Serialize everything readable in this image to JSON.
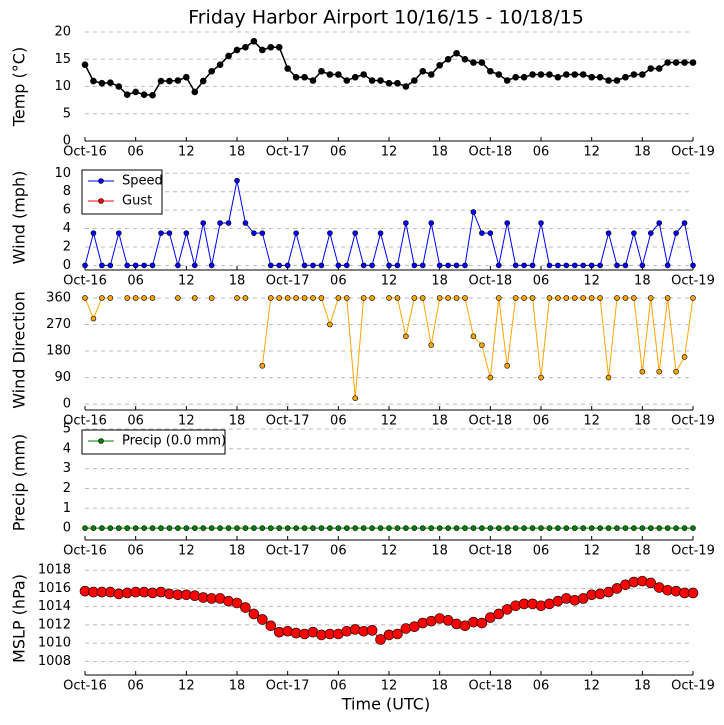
{
  "chart_data": [
    {
      "type": "line",
      "title": "Friday Harbor Airport 10/16/15 - 10/18/15",
      "ylabel": "Temp (°C)",
      "x": [
        0,
        1,
        2,
        3,
        4,
        5,
        6,
        7,
        8,
        9,
        10,
        11,
        12,
        13,
        14,
        15,
        16,
        17,
        18,
        19,
        20,
        21,
        22,
        23,
        24,
        25,
        26,
        27,
        28,
        29,
        30,
        31,
        32,
        33,
        34,
        35,
        36,
        37,
        38,
        39,
        40,
        41,
        42,
        43,
        44,
        45,
        46,
        47,
        48,
        49,
        50,
        51,
        52,
        53,
        54,
        55,
        56,
        57,
        58,
        59,
        60,
        61,
        62,
        63,
        64,
        65,
        66,
        67,
        68,
        69,
        70,
        71,
        72
      ],
      "series": [
        {
          "name": "Temp",
          "color": "#000000",
          "values": [
            14,
            11,
            10.6,
            10.7,
            10,
            8.5,
            9,
            8.5,
            8.4,
            11,
            11,
            11.1,
            11.7,
            9,
            11,
            12.8,
            14,
            15.6,
            16.7,
            17.2,
            18.3,
            16.7,
            17.2,
            17.2,
            13.3,
            11.7,
            11.7,
            11.1,
            12.8,
            12.2,
            12.2,
            11.1,
            11.7,
            12.2,
            11.1,
            11.1,
            10.6,
            10.6,
            10,
            11.1,
            12.8,
            12.2,
            13.9,
            15,
            16.1,
            15,
            14.4,
            14.4,
            12.8,
            12.2,
            11.1,
            11.7,
            11.7,
            12.2,
            12.2,
            12.2,
            11.7,
            12.2,
            12.2,
            12.2,
            11.7,
            11.7,
            11.1,
            11.1,
            11.7,
            12.2,
            12.2,
            13.3,
            13.3,
            14.4,
            14.4,
            14.4,
            14.4
          ]
        }
      ],
      "xlim": [
        0,
        72
      ],
      "xticks": [
        {
          "value": 0,
          "label": "Oct-16"
        },
        {
          "value": 6,
          "label": "06"
        },
        {
          "value": 12,
          "label": "12"
        },
        {
          "value": 18,
          "label": "18"
        },
        {
          "value": 24,
          "label": "Oct-17"
        },
        {
          "value": 30,
          "label": "06"
        },
        {
          "value": 36,
          "label": "12"
        },
        {
          "value": 42,
          "label": "18"
        },
        {
          "value": 48,
          "label": "Oct-18"
        },
        {
          "value": 54,
          "label": "06"
        },
        {
          "value": 60,
          "label": "12"
        },
        {
          "value": 66,
          "label": "18"
        },
        {
          "value": 72,
          "label": "Oct-19"
        }
      ],
      "ylim": [
        0,
        20
      ],
      "yticks": [
        0,
        5,
        10,
        15,
        20
      ],
      "grid": true
    },
    {
      "type": "line",
      "ylabel": "Wind (mph)",
      "x": [
        0,
        1,
        2,
        3,
        4,
        5,
        6,
        7,
        8,
        9,
        10,
        11,
        12,
        13,
        14,
        15,
        16,
        17,
        18,
        19,
        20,
        21,
        22,
        23,
        24,
        25,
        26,
        27,
        28,
        29,
        30,
        31,
        32,
        33,
        34,
        35,
        36,
        37,
        38,
        39,
        40,
        41,
        42,
        43,
        44,
        45,
        46,
        47,
        48,
        49,
        50,
        51,
        52,
        53,
        54,
        55,
        56,
        57,
        58,
        59,
        60,
        61,
        62,
        63,
        64,
        65,
        66,
        67,
        68,
        69,
        70,
        71,
        72
      ],
      "series": [
        {
          "name": "Speed",
          "color": "#0000ff",
          "values": [
            0,
            3.5,
            0,
            0,
            3.5,
            0,
            0,
            0,
            0,
            3.5,
            3.5,
            0,
            3.5,
            0,
            4.6,
            0,
            4.6,
            4.6,
            9.2,
            4.6,
            3.5,
            3.5,
            0,
            0,
            0,
            3.5,
            0,
            0,
            0,
            3.5,
            0,
            0,
            3.5,
            0,
            0,
            3.5,
            0,
            0,
            4.6,
            0,
            0,
            4.6,
            0,
            0,
            0,
            0,
            5.8,
            3.5,
            3.5,
            0,
            4.6,
            0,
            0,
            0,
            4.6,
            0,
            0,
            0,
            0,
            0,
            0,
            0,
            3.5,
            0,
            0,
            3.5,
            0,
            3.5,
            4.6,
            0,
            3.5,
            4.6,
            0
          ]
        },
        {
          "name": "Gust",
          "color": "#ff0000",
          "values": [
            null,
            null,
            null,
            null,
            null,
            null,
            null,
            null,
            null,
            null,
            null,
            null,
            null,
            null,
            null,
            null,
            null,
            null,
            null,
            null,
            null,
            null,
            null,
            null,
            null,
            null,
            null,
            null,
            null,
            null,
            null,
            null,
            null,
            null,
            null,
            null,
            null,
            null,
            null,
            null,
            null,
            null,
            null,
            null,
            null,
            null,
            null,
            null,
            null,
            null,
            null,
            null,
            null,
            null,
            null,
            null,
            null,
            null,
            null,
            null,
            null,
            null,
            null,
            null,
            null,
            null,
            null,
            null,
            null,
            null,
            null,
            null,
            null
          ]
        }
      ],
      "xlim": [
        0,
        72
      ],
      "xticks": [
        {
          "value": 0,
          "label": "Oct-16"
        },
        {
          "value": 6,
          "label": "06"
        },
        {
          "value": 12,
          "label": "12"
        },
        {
          "value": 18,
          "label": "18"
        },
        {
          "value": 24,
          "label": "Oct-17"
        },
        {
          "value": 30,
          "label": "06"
        },
        {
          "value": 36,
          "label": "12"
        },
        {
          "value": 42,
          "label": "18"
        },
        {
          "value": 48,
          "label": "Oct-18"
        },
        {
          "value": 54,
          "label": "06"
        },
        {
          "value": 60,
          "label": "12"
        },
        {
          "value": 66,
          "label": "18"
        },
        {
          "value": 72,
          "label": "Oct-19"
        }
      ],
      "ylim": [
        -0.5,
        10.9
      ],
      "yticks": [
        0,
        2,
        4,
        6,
        8,
        10
      ],
      "grid": true,
      "legend": "upper left"
    },
    {
      "type": "line",
      "ylabel": "Wind Direction",
      "x": [
        0,
        1,
        2,
        3,
        4,
        5,
        6,
        7,
        8,
        9,
        10,
        11,
        12,
        13,
        14,
        15,
        16,
        17,
        18,
        19,
        20,
        21,
        22,
        23,
        24,
        25,
        26,
        27,
        28,
        29,
        30,
        31,
        32,
        33,
        34,
        35,
        36,
        37,
        38,
        39,
        40,
        41,
        42,
        43,
        44,
        45,
        46,
        47,
        48,
        49,
        50,
        51,
        52,
        53,
        54,
        55,
        56,
        57,
        58,
        59,
        60,
        61,
        62,
        63,
        64,
        65,
        66,
        67,
        68,
        69,
        70,
        71,
        72
      ],
      "series": [
        {
          "name": "Direction",
          "color": "#ffa500",
          "values": [
            360,
            290,
            360,
            360,
            null,
            360,
            360,
            360,
            360,
            null,
            null,
            360,
            null,
            360,
            null,
            360,
            null,
            null,
            360,
            360,
            null,
            130,
            360,
            360,
            360,
            360,
            360,
            360,
            360,
            270,
            360,
            360,
            20,
            360,
            360,
            null,
            360,
            360,
            230,
            360,
            360,
            200,
            360,
            360,
            360,
            360,
            230,
            200,
            90,
            360,
            130,
            360,
            360,
            360,
            90,
            360,
            360,
            360,
            360,
            360,
            360,
            360,
            90,
            360,
            360,
            360,
            110,
            360,
            110,
            360,
            110,
            160,
            360
          ]
        }
      ],
      "xlim": [
        0,
        72
      ],
      "xticks": [
        {
          "value": 0,
          "label": "Oct-16"
        },
        {
          "value": 6,
          "label": "06"
        },
        {
          "value": 12,
          "label": "12"
        },
        {
          "value": 18,
          "label": "18"
        },
        {
          "value": 24,
          "label": "Oct-17"
        },
        {
          "value": 30,
          "label": "06"
        },
        {
          "value": 36,
          "label": "12"
        },
        {
          "value": 42,
          "label": "18"
        },
        {
          "value": 48,
          "label": "Oct-18"
        },
        {
          "value": 54,
          "label": "06"
        },
        {
          "value": 60,
          "label": "12"
        },
        {
          "value": 66,
          "label": "18"
        },
        {
          "value": 72,
          "label": "Oct-19"
        }
      ],
      "ylim": [
        -20,
        387
      ],
      "yticks": [
        0,
        90,
        180,
        270,
        360
      ],
      "grid": true
    },
    {
      "type": "line",
      "ylabel": "Precip (mm)",
      "x": [
        0,
        1,
        2,
        3,
        4,
        5,
        6,
        7,
        8,
        9,
        10,
        11,
        12,
        13,
        14,
        15,
        16,
        17,
        18,
        19,
        20,
        21,
        22,
        23,
        24,
        25,
        26,
        27,
        28,
        29,
        30,
        31,
        32,
        33,
        34,
        35,
        36,
        37,
        38,
        39,
        40,
        41,
        42,
        43,
        44,
        45,
        46,
        47,
        48,
        49,
        50,
        51,
        52,
        53,
        54,
        55,
        56,
        57,
        58,
        59,
        60,
        61,
        62,
        63,
        64,
        65,
        66,
        67,
        68,
        69,
        70,
        71,
        72
      ],
      "series": [
        {
          "name": "Precip (0.0 mm)",
          "color": "#008000",
          "values": [
            0,
            0,
            0,
            0,
            0,
            0,
            0,
            0,
            0,
            0,
            0,
            0,
            0,
            0,
            0,
            0,
            0,
            0,
            0,
            0,
            0,
            0,
            0,
            0,
            0,
            0,
            0,
            0,
            0,
            0,
            0,
            0,
            0,
            0,
            0,
            0,
            0,
            0,
            0,
            0,
            0,
            0,
            0,
            0,
            0,
            0,
            0,
            0,
            0,
            0,
            0,
            0,
            0,
            0,
            0,
            0,
            0,
            0,
            0,
            0,
            0,
            0,
            0,
            0,
            0,
            0,
            0,
            0,
            0,
            0,
            0,
            0,
            0
          ]
        }
      ],
      "xlim": [
        0,
        72
      ],
      "xticks": [
        {
          "value": 0,
          "label": "Oct-16"
        },
        {
          "value": 6,
          "label": "06"
        },
        {
          "value": 12,
          "label": "12"
        },
        {
          "value": 18,
          "label": "18"
        },
        {
          "value": 24,
          "label": "Oct-17"
        },
        {
          "value": 30,
          "label": "06"
        },
        {
          "value": 36,
          "label": "12"
        },
        {
          "value": 42,
          "label": "18"
        },
        {
          "value": 48,
          "label": "Oct-18"
        },
        {
          "value": 54,
          "label": "06"
        },
        {
          "value": 60,
          "label": "12"
        },
        {
          "value": 66,
          "label": "18"
        },
        {
          "value": 72,
          "label": "Oct-19"
        }
      ],
      "ylim": [
        -0.6,
        5.2
      ],
      "yticks": [
        0,
        1,
        2,
        3,
        4,
        5
      ],
      "grid": true,
      "legend": "upper left"
    },
    {
      "type": "line",
      "ylabel": "MSLP (hPa)",
      "xlabel": "Time (UTC)",
      "x": [
        0,
        1,
        2,
        3,
        4,
        5,
        6,
        7,
        8,
        9,
        10,
        11,
        12,
        13,
        14,
        15,
        16,
        17,
        18,
        19,
        20,
        21,
        22,
        23,
        24,
        25,
        26,
        27,
        28,
        29,
        30,
        31,
        32,
        33,
        34,
        35,
        36,
        37,
        38,
        39,
        40,
        41,
        42,
        43,
        44,
        45,
        46,
        47,
        48,
        49,
        50,
        51,
        52,
        53,
        54,
        55,
        56,
        57,
        58,
        59,
        60,
        61,
        62,
        63,
        64,
        65,
        66,
        67,
        68,
        69,
        70,
        71,
        72
      ],
      "series": [
        {
          "name": "MSLP",
          "color": "#ff0000",
          "values": [
            1015.7,
            1015.6,
            1015.6,
            1015.6,
            1015.4,
            1015.5,
            1015.6,
            1015.6,
            1015.5,
            1015.6,
            1015.4,
            1015.3,
            1015.3,
            1015.2,
            1015,
            1014.9,
            1014.9,
            1014.6,
            1014.4,
            1013.9,
            1013.2,
            1012.6,
            1011.9,
            1011.2,
            1011.3,
            1011.1,
            1011,
            1011.2,
            1010.9,
            1011,
            1011,
            1011.3,
            1011.5,
            1011.3,
            1011.4,
            1010.4,
            1010.9,
            1011,
            1011.6,
            1011.8,
            1012.2,
            1012.4,
            1012.7,
            1012.5,
            1012.1,
            1011.9,
            1012.3,
            1012.2,
            1012.8,
            1013.2,
            1013.7,
            1014.1,
            1014.3,
            1014.3,
            1014.1,
            1014.3,
            1014.6,
            1014.9,
            1014.7,
            1014.9,
            1015.3,
            1015.4,
            1015.6,
            1016,
            1016.4,
            1016.7,
            1016.8,
            1016.6,
            1016.1,
            1015.8,
            1015.7,
            1015.5,
            1015.5
          ]
        }
      ],
      "xlim": [
        0,
        72
      ],
      "xticks": [
        {
          "value": 0,
          "label": "Oct-16"
        },
        {
          "value": 6,
          "label": "06"
        },
        {
          "value": 12,
          "label": "12"
        },
        {
          "value": 18,
          "label": "18"
        },
        {
          "value": 24,
          "label": "Oct-17"
        },
        {
          "value": 30,
          "label": "06"
        },
        {
          "value": 36,
          "label": "12"
        },
        {
          "value": 42,
          "label": "18"
        },
        {
          "value": 48,
          "label": "Oct-18"
        },
        {
          "value": 54,
          "label": "06"
        },
        {
          "value": 60,
          "label": "12"
        },
        {
          "value": 66,
          "label": "18"
        },
        {
          "value": 72,
          "label": "Oct-19"
        }
      ],
      "ylim": [
        1006.5,
        1018.9
      ],
      "yticks": [
        1008,
        1010,
        1012,
        1014,
        1016,
        1018
      ],
      "grid": true
    }
  ]
}
